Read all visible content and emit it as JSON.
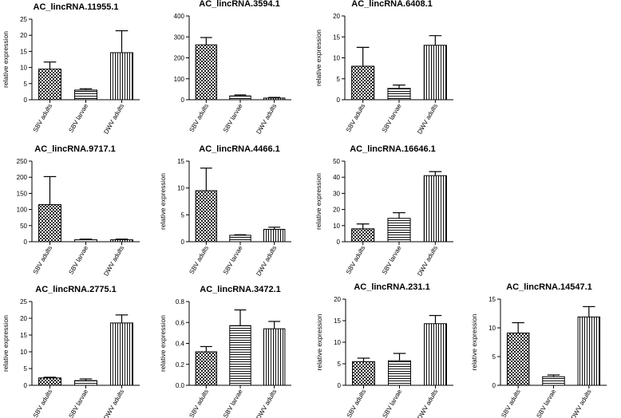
{
  "chart_data": [
    {
      "type": "bar",
      "title": "AC_lincRNA.11955.1",
      "ylabel": "relative expression",
      "categories": [
        "SBV adults",
        "SBV larvae",
        "DWV adults"
      ],
      "values": [
        9.5,
        3.0,
        14.6
      ],
      "errors": [
        2.2,
        0.4,
        6.8
      ],
      "ylim": [
        0,
        25
      ],
      "yticks": [
        0,
        5,
        10,
        15,
        20,
        25
      ]
    },
    {
      "type": "bar",
      "title": "AC_lincRNA.3594.1",
      "ylabel": "",
      "categories": [
        "SBV adults",
        "SBV larvae",
        "DWV adults"
      ],
      "values": [
        262,
        18,
        8
      ],
      "errors": [
        35,
        5,
        3
      ],
      "ylim": [
        0,
        400
      ],
      "yticks": [
        0,
        100,
        200,
        300,
        400
      ]
    },
    {
      "type": "bar",
      "title": "AC_lincRNA.6408.1",
      "ylabel": "relative expression",
      "categories": [
        "SBV adults",
        "SBV larvae",
        "DWV adults"
      ],
      "values": [
        8.0,
        2.7,
        13.0
      ],
      "errors": [
        4.5,
        0.8,
        2.3
      ],
      "ylim": [
        0,
        20
      ],
      "yticks": [
        0,
        5,
        10,
        15,
        20
      ]
    },
    {
      "type": "bar",
      "title": "AC_lincRNA.9717.1",
      "ylabel": "",
      "categories": [
        "SBV adults",
        "SBV larvae",
        "DWV adults"
      ],
      "values": [
        115,
        6,
        6
      ],
      "errors": [
        87,
        2,
        2
      ],
      "ylim": [
        0,
        250
      ],
      "yticks": [
        0,
        50,
        100,
        150,
        200,
        250
      ]
    },
    {
      "type": "bar",
      "title": "AC_lincRNA.4466.1",
      "ylabel": "relative expression",
      "categories": [
        "SBV adults",
        "SBV larvae",
        "DWV adults"
      ],
      "values": [
        9.5,
        1.2,
        2.3
      ],
      "errors": [
        4.2,
        0.1,
        0.4
      ],
      "ylim": [
        0,
        15
      ],
      "yticks": [
        0,
        5,
        10,
        15
      ]
    },
    {
      "type": "bar",
      "title": "AC_lincRNA.16646.1",
      "ylabel": "relative expression",
      "categories": [
        "SBV adults",
        "SBV larvae",
        "DWV adults"
      ],
      "values": [
        8.0,
        14.5,
        41.0
      ],
      "errors": [
        3.0,
        3.5,
        2.5
      ],
      "ylim": [
        0,
        50
      ],
      "yticks": [
        0,
        10,
        20,
        30,
        40,
        50
      ]
    },
    {
      "type": "bar",
      "title": "AC_lincRNA.2775.1",
      "ylabel": "relative expression",
      "categories": [
        "SBV adults",
        "SBV larvae",
        "DWV adults"
      ],
      "values": [
        2.2,
        1.4,
        18.6
      ],
      "errors": [
        0.2,
        0.5,
        2.4
      ],
      "ylim": [
        0,
        25
      ],
      "yticks": [
        0,
        5,
        10,
        15,
        20,
        25
      ]
    },
    {
      "type": "bar",
      "title": "AC_lincRNA.3472.1",
      "ylabel": "relative expression",
      "categories": [
        "SBV adults",
        "SBV larvae",
        "DWV adults"
      ],
      "values": [
        0.32,
        0.57,
        0.54
      ],
      "errors": [
        0.05,
        0.15,
        0.07
      ],
      "ylim": [
        0,
        0.8
      ],
      "yticks": [
        0.0,
        0.2,
        0.4,
        0.6,
        0.8
      ]
    },
    {
      "type": "bar",
      "title": "AC_lincRNA.231.1",
      "ylabel": "relative expression",
      "categories": [
        "SBV adults",
        "SBV larvae",
        "DWV adults"
      ],
      "values": [
        5.5,
        5.7,
        14.3
      ],
      "errors": [
        0.8,
        1.7,
        1.9
      ],
      "ylim": [
        0,
        20
      ],
      "yticks": [
        0,
        5,
        10,
        15,
        20
      ]
    },
    {
      "type": "bar",
      "title": "AC_lincRNA.14547.1",
      "ylabel": "relative expression",
      "categories": [
        "SBV adults",
        "SBV larvae",
        "DWV adults"
      ],
      "values": [
        9.1,
        1.5,
        11.9
      ],
      "errors": [
        1.8,
        0.3,
        1.8
      ],
      "ylim": [
        0,
        15
      ],
      "yticks": [
        0,
        5,
        10,
        15
      ]
    }
  ],
  "colors": {
    "ink": "#000000",
    "background": "#ffffff"
  },
  "patterns": [
    "checker",
    "horizontal-lines",
    "vertical-lines"
  ]
}
